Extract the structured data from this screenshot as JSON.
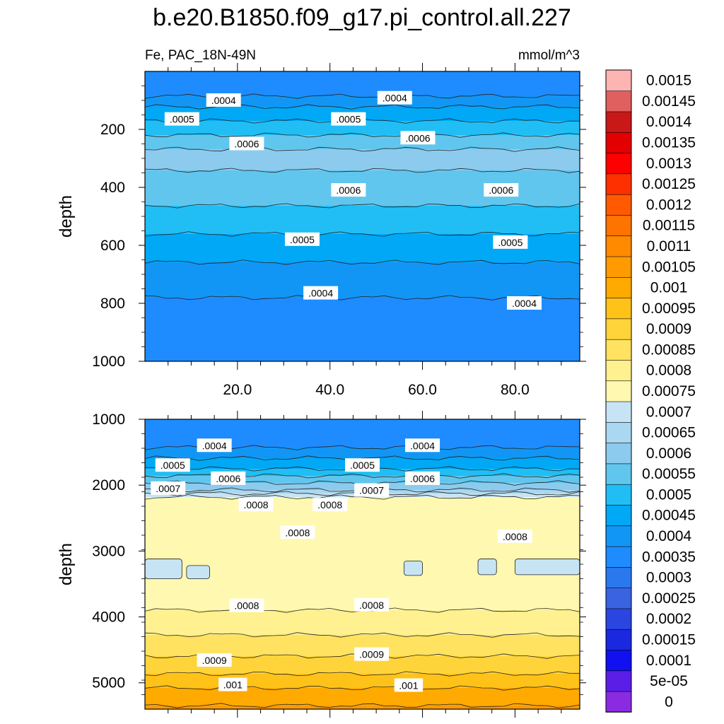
{
  "chart_data": {
    "type": "heatmap",
    "title": "b.e20.B1850.f09_g17.pi_control.all.227",
    "variable_label": "Fe, PAC_18N-49N",
    "units_label": "mmol/m^3",
    "panels": [
      {
        "name": "upper",
        "ylabel": "depth",
        "ylim": [
          1000,
          0
        ],
        "xlim": [
          0,
          94
        ],
        "yticks": [
          200,
          400,
          600,
          800,
          1000
        ],
        "ytick_labels": [
          "200",
          "400",
          "600",
          "800",
          "1000"
        ],
        "xticks": [
          20,
          40,
          60,
          80
        ],
        "xtick_labels": [
          "20.0",
          "40.0",
          "60.0",
          "80.0"
        ],
        "profile": [
          {
            "depth": 0,
            "value": 0.00035
          },
          {
            "depth": 80,
            "value": 0.0004
          },
          {
            "depth": 160,
            "value": 0.0005
          },
          {
            "depth": 280,
            "value": 0.00062
          },
          {
            "depth": 400,
            "value": 0.00058
          },
          {
            "depth": 560,
            "value": 0.0005
          },
          {
            "depth": 700,
            "value": 0.00042
          },
          {
            "depth": 900,
            "value": 0.00037
          },
          {
            "depth": 1000,
            "value": 0.00035
          }
        ],
        "contour_labels": [
          {
            "text": ".0004",
            "x": 17,
            "depth": 100
          },
          {
            "text": ".0004",
            "x": 54,
            "depth": 92
          },
          {
            "text": ".0005",
            "x": 8,
            "depth": 165
          },
          {
            "text": ".0005",
            "x": 44,
            "depth": 165
          },
          {
            "text": ".0006",
            "x": 22,
            "depth": 250
          },
          {
            "text": ".0006",
            "x": 59,
            "depth": 230
          },
          {
            "text": ".0006",
            "x": 44,
            "depth": 410
          },
          {
            "text": ".0006",
            "x": 77,
            "depth": 410
          },
          {
            "text": ".0005",
            "x": 34,
            "depth": 580
          },
          {
            "text": ".0005",
            "x": 79,
            "depth": 590
          },
          {
            "text": ".0004",
            "x": 38,
            "depth": 765
          },
          {
            "text": ".0004",
            "x": 82,
            "depth": 800
          }
        ]
      },
      {
        "name": "lower",
        "ylabel": "depth",
        "ylim": [
          5400,
          1000
        ],
        "xlim": [
          0,
          94
        ],
        "yticks": [
          1000,
          2000,
          3000,
          4000,
          5000
        ],
        "ytick_labels": [
          "1000",
          "2000",
          "3000",
          "4000",
          "5000"
        ],
        "profile": [
          {
            "depth": 1000,
            "value": 0.00036
          },
          {
            "depth": 1400,
            "value": 0.0004
          },
          {
            "depth": 1750,
            "value": 0.0005
          },
          {
            "depth": 1950,
            "value": 0.0006
          },
          {
            "depth": 2100,
            "value": 0.0007
          },
          {
            "depth": 2250,
            "value": 0.0008
          },
          {
            "depth": 2700,
            "value": 0.00079
          },
          {
            "depth": 3200,
            "value": 0.00076
          },
          {
            "depth": 3800,
            "value": 0.00079
          },
          {
            "depth": 4300,
            "value": 0.00086
          },
          {
            "depth": 4700,
            "value": 0.00092
          },
          {
            "depth": 5000,
            "value": 0.00099
          },
          {
            "depth": 5400,
            "value": 0.00106
          }
        ],
        "contour_labels": [
          {
            "text": ".0004",
            "x": 15,
            "depth": 1400
          },
          {
            "text": ".0004",
            "x": 60,
            "depth": 1400
          },
          {
            "text": ".0005",
            "x": 6,
            "depth": 1700
          },
          {
            "text": ".0005",
            "x": 47,
            "depth": 1700
          },
          {
            "text": ".0006",
            "x": 18,
            "depth": 1900
          },
          {
            "text": ".0006",
            "x": 60,
            "depth": 1900
          },
          {
            "text": ".0007",
            "x": 5,
            "depth": 2050
          },
          {
            "text": ".0007",
            "x": 49,
            "depth": 2080
          },
          {
            "text": ".0008",
            "x": 24,
            "depth": 2300
          },
          {
            "text": ".0008",
            "x": 40,
            "depth": 2300
          },
          {
            "text": ".0008",
            "x": 33,
            "depth": 2720
          },
          {
            "text": ".0008",
            "x": 80,
            "depth": 2780
          },
          {
            "text": ".0008",
            "x": 22,
            "depth": 3830
          },
          {
            "text": ".0008",
            "x": 49,
            "depth": 3820
          },
          {
            "text": ".0009",
            "x": 15,
            "depth": 4660
          },
          {
            "text": ".0009",
            "x": 49,
            "depth": 4570
          },
          {
            "text": ".001",
            "x": 19,
            "depth": 5030
          },
          {
            "text": ".001",
            "x": 57,
            "depth": 5040
          }
        ],
        "islands": [
          {
            "x0": 0,
            "x1": 8,
            "depth0": 3120,
            "depth1": 3420
          },
          {
            "x0": 9,
            "x1": 14,
            "depth0": 3220,
            "depth1": 3420
          },
          {
            "x0": 72,
            "x1": 76,
            "depth0": 3120,
            "depth1": 3360
          },
          {
            "x0": 80,
            "x1": 94,
            "depth0": 3120,
            "depth1": 3360
          },
          {
            "x0": 56,
            "x1": 60,
            "depth0": 3150,
            "depth1": 3370
          }
        ]
      }
    ],
    "colorbar": {
      "levels": [
        "0",
        "5e-05",
        "0.0001",
        "0.00015",
        "0.0002",
        "0.00025",
        "0.0003",
        "0.00035",
        "0.0004",
        "0.00045",
        "0.0005",
        "0.00055",
        "0.0006",
        "0.00065",
        "0.0007",
        "0.00075",
        "0.0008",
        "0.00085",
        "0.0009",
        "0.00095",
        "0.001",
        "0.00105",
        "0.0011",
        "0.00115",
        "0.0012",
        "0.00125",
        "0.0013",
        "0.00135",
        "0.0014",
        "0.00145",
        "0.0015"
      ],
      "colors": [
        "#8a2be2",
        "#5a1ee6",
        "#1010f0",
        "#1a28e0",
        "#2a45e0",
        "#3a63e2",
        "#2a78ee",
        "#1e8cff",
        "#1296f5",
        "#00a8f5",
        "#20bef5",
        "#60c6ee",
        "#8ccbee",
        "#aad8f0",
        "#c6e4f4",
        "#fff8b0",
        "#fff090",
        "#ffe260",
        "#ffd43a",
        "#ffc218",
        "#ffaa00",
        "#ff9a00",
        "#ff8a00",
        "#ff7400",
        "#ff5a00",
        "#ff3000",
        "#ff0000",
        "#e40000",
        "#c81818",
        "#e06060",
        "#ffb4b4"
      ]
    }
  }
}
